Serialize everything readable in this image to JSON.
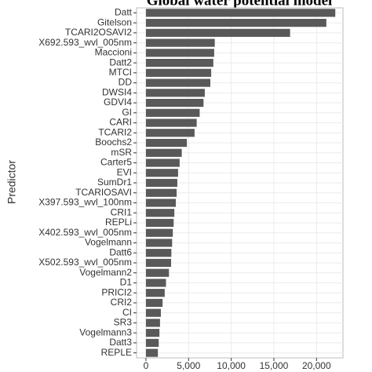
{
  "chart_data": {
    "type": "bar",
    "orientation": "horizontal",
    "title": "Global water potential model",
    "y_label": "Predictor",
    "categories": [
      "Datt",
      "Gitelson",
      "TCARI2OSAVI2",
      "X692.593_wvl_005nm",
      "Maccioni",
      "Datt2",
      "MTCI",
      "DD",
      "DWSI4",
      "GDVI4",
      "GI",
      "CARI",
      "TCARI2",
      "Boochs2",
      "mSR",
      "Carter5",
      "EVI",
      "SumDr1",
      "TCARIOSAVI",
      "X397.593_wvl_100nm",
      "CRI1",
      "REPLi",
      "X402.593_wvl_005nm",
      "Vogelmann",
      "Datt6",
      "X502.593_wvl_005nm",
      "Vogelmann2",
      "D1",
      "PRICI2",
      "CRI2",
      "CI",
      "SR3",
      "Vogelmann3",
      "Datt3",
      "REPLE"
    ],
    "values": [
      22200,
      21150,
      16900,
      8070,
      8000,
      7900,
      7650,
      7550,
      6900,
      6750,
      6300,
      5950,
      5700,
      4800,
      4200,
      3950,
      3770,
      3680,
      3600,
      3500,
      3330,
      3250,
      3150,
      3070,
      2980,
      2950,
      2700,
      2350,
      2200,
      1950,
      1750,
      1650,
      1580,
      1500,
      1400
    ],
    "color": "#595959",
    "xlim": [
      -1100,
      23100
    ],
    "xticks": [
      0,
      {
        "value": 5000,
        "label": "5,000"
      },
      {
        "value": 10000,
        "label": "10,000"
      },
      {
        "value": 15000,
        "label": "15,000"
      },
      {
        "value": 20000,
        "label": "20,000"
      }
    ],
    "grid": true
  }
}
